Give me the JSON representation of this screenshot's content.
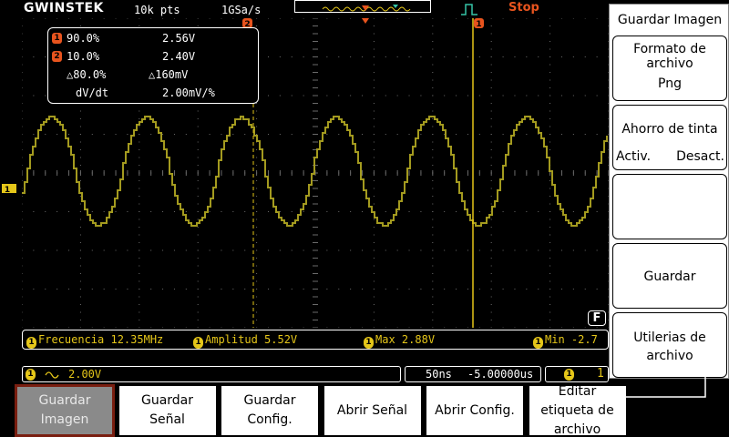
{
  "topbar": {
    "brand": "GWINSTEK",
    "memory_points": "10k pts",
    "sample_rate": "1GSa/s",
    "run_state": "Stop"
  },
  "colors": {
    "channel1": "#e5c619",
    "trace": "#a39a1f",
    "cursor": "#e8541e",
    "grid": "#6a6a6a",
    "trigger_marker": "#35c6a8"
  },
  "markers": {
    "cursor1": "1",
    "cursor2": "2",
    "channel1": "1"
  },
  "cursor_box": {
    "rows": [
      {
        "badge": "1",
        "a": "90.0%",
        "b": "2.56V"
      },
      {
        "badge": "2",
        "a": "10.0%",
        "b": "2.40V"
      },
      {
        "badge": "",
        "a": "△80.0%",
        "b": "△160mV"
      },
      {
        "badge": "",
        "a": "dV/dt",
        "b": "2.00mV/%"
      }
    ]
  },
  "measurements": [
    {
      "label": "Frecuencia",
      "value": "12.35MHz"
    },
    {
      "label": "Amplitud",
      "value": "5.52V"
    },
    {
      "label": "Max",
      "value": "2.88V"
    },
    {
      "label": "Min",
      "value": "-2.7"
    }
  ],
  "info_bar": {
    "ch1_scale": "2.00V",
    "timebase": "50ns",
    "offset": "-5.00000us",
    "function_key": "F"
  },
  "side_menu": {
    "title": "Guardar Imagen",
    "format": {
      "label": "Formato de archivo",
      "value": "Png"
    },
    "ink_saver": {
      "label": "Ahorro de tinta",
      "on": "Activ.",
      "off": "Desact."
    },
    "blank": "",
    "save": "Guardar",
    "utilities": "Utilerias de archivo"
  },
  "bottom_menu": [
    {
      "label": "Guardar Imagen",
      "active": true
    },
    {
      "label": "Guardar Señal",
      "active": false
    },
    {
      "label": "Guardar Config.",
      "active": false
    },
    {
      "label": "Abrir Señal",
      "active": false
    },
    {
      "label": "Abrir Config.",
      "active": false
    },
    {
      "label": "Editar etiqueta de archivo",
      "active": false
    }
  ],
  "waveform": {
    "frequency_mhz": 12.35,
    "amplitude_v": 5.52,
    "max_v": 2.88,
    "min_v": -2.7,
    "volts_per_div": 2.0,
    "ns_per_div": 50
  }
}
